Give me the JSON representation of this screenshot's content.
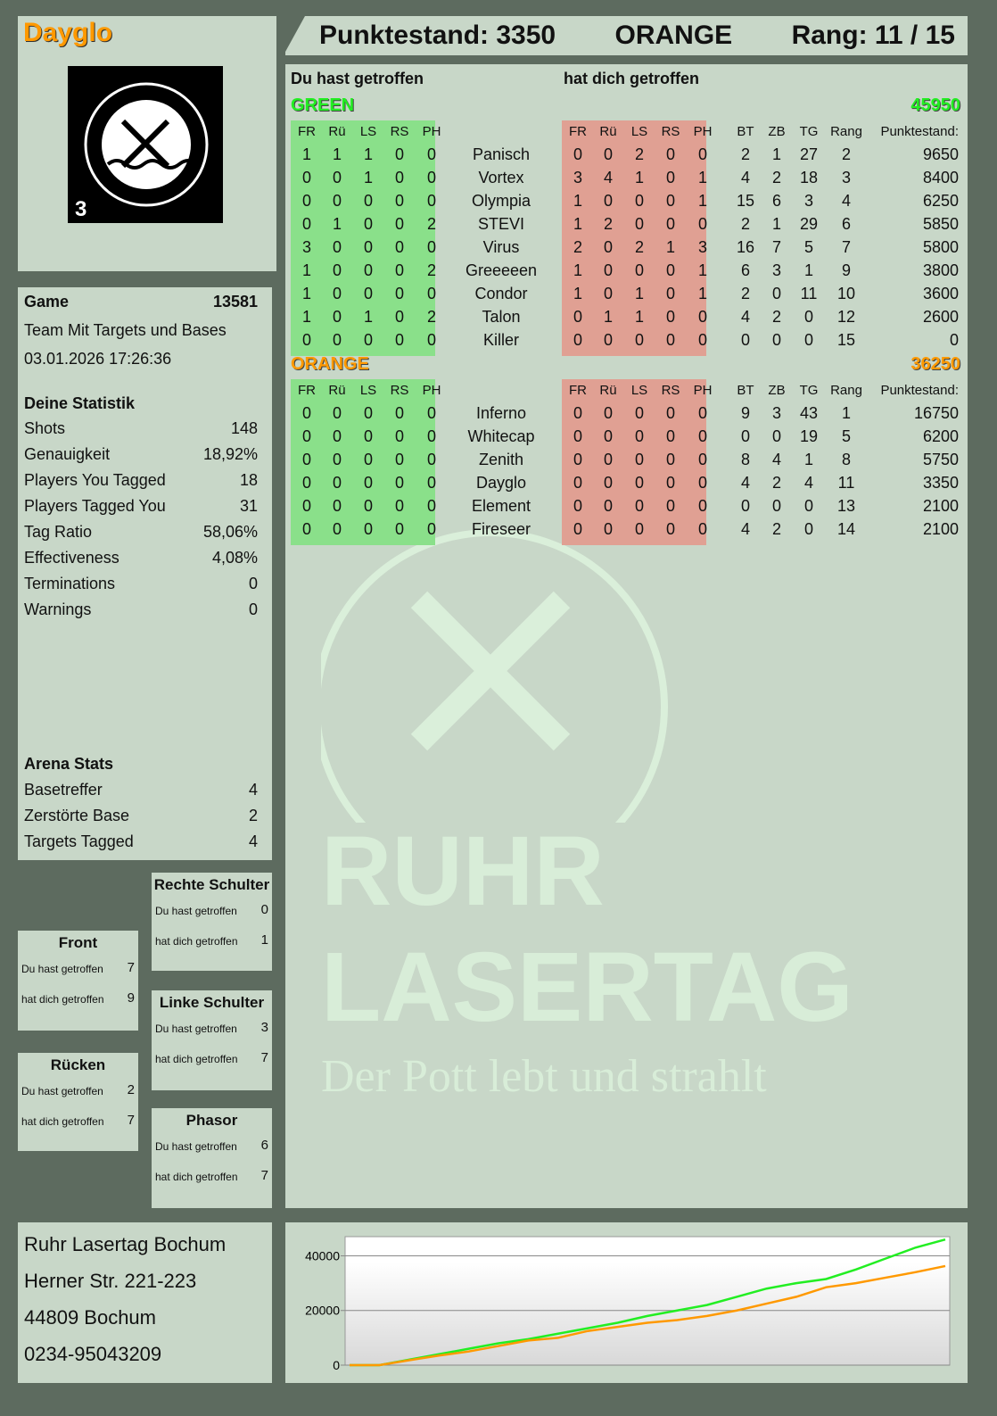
{
  "player": {
    "name": "Dayglo",
    "logo_text": "RUHR LASERTAG",
    "logo_badge": "3"
  },
  "header": {
    "score": "Punktestand: 3350",
    "team": "ORANGE",
    "rank": "Rang: 11 / 15"
  },
  "main": {
    "you_hit": "Du hast getroffen",
    "hit_you": "hat dich getroffen",
    "cols_hit": [
      "FR",
      "Rü",
      "LS",
      "RS",
      "PH"
    ],
    "cols_stats": [
      "BT",
      "ZB",
      "TG",
      "Rang",
      "Punktestand:"
    ],
    "teams": [
      {
        "name": "GREEN",
        "score": "45950",
        "color": "#22ee22",
        "players": [
          {
            "name": "Panisch",
            "you": [
              1,
              1,
              1,
              0,
              0
            ],
            "them": [
              0,
              0,
              2,
              0,
              0
            ],
            "stats": [
              2,
              1,
              27,
              2,
              9650
            ]
          },
          {
            "name": "Vortex",
            "you": [
              0,
              0,
              1,
              0,
              0
            ],
            "them": [
              3,
              4,
              1,
              0,
              1
            ],
            "stats": [
              4,
              2,
              18,
              3,
              8400
            ]
          },
          {
            "name": "Olympia",
            "you": [
              0,
              0,
              0,
              0,
              0
            ],
            "them": [
              1,
              0,
              0,
              0,
              1
            ],
            "stats": [
              15,
              6,
              3,
              4,
              6250
            ]
          },
          {
            "name": "STEVI",
            "you": [
              0,
              1,
              0,
              0,
              2
            ],
            "them": [
              1,
              2,
              0,
              0,
              0
            ],
            "stats": [
              2,
              1,
              29,
              6,
              5850
            ]
          },
          {
            "name": "Virus",
            "you": [
              3,
              0,
              0,
              0,
              0
            ],
            "them": [
              2,
              0,
              2,
              1,
              3
            ],
            "stats": [
              16,
              7,
              5,
              7,
              5800
            ]
          },
          {
            "name": "Greeeeen",
            "you": [
              1,
              0,
              0,
              0,
              2
            ],
            "them": [
              1,
              0,
              0,
              0,
              1
            ],
            "stats": [
              6,
              3,
              1,
              9,
              3800
            ]
          },
          {
            "name": "Condor",
            "you": [
              1,
              0,
              0,
              0,
              0
            ],
            "them": [
              1,
              0,
              1,
              0,
              1
            ],
            "stats": [
              2,
              0,
              11,
              10,
              3600
            ]
          },
          {
            "name": "Talon",
            "you": [
              1,
              0,
              1,
              0,
              2
            ],
            "them": [
              0,
              1,
              1,
              0,
              0
            ],
            "stats": [
              4,
              2,
              0,
              12,
              2600
            ]
          },
          {
            "name": "Killer",
            "you": [
              0,
              0,
              0,
              0,
              0
            ],
            "them": [
              0,
              0,
              0,
              0,
              0
            ],
            "stats": [
              0,
              0,
              0,
              15,
              0
            ]
          }
        ]
      },
      {
        "name": "ORANGE",
        "score": "36250",
        "color": "#ff9900",
        "players": [
          {
            "name": "Inferno",
            "you": [
              0,
              0,
              0,
              0,
              0
            ],
            "them": [
              0,
              0,
              0,
              0,
              0
            ],
            "stats": [
              9,
              3,
              43,
              1,
              16750
            ]
          },
          {
            "name": "Whitecap",
            "you": [
              0,
              0,
              0,
              0,
              0
            ],
            "them": [
              0,
              0,
              0,
              0,
              0
            ],
            "stats": [
              0,
              0,
              19,
              5,
              6200
            ]
          },
          {
            "name": "Zenith",
            "you": [
              0,
              0,
              0,
              0,
              0
            ],
            "them": [
              0,
              0,
              0,
              0,
              0
            ],
            "stats": [
              8,
              4,
              1,
              8,
              5750
            ]
          },
          {
            "name": "Dayglo",
            "you": [
              0,
              0,
              0,
              0,
              0
            ],
            "them": [
              0,
              0,
              0,
              0,
              0
            ],
            "stats": [
              4,
              2,
              4,
              11,
              3350
            ]
          },
          {
            "name": "Element",
            "you": [
              0,
              0,
              0,
              0,
              0
            ],
            "them": [
              0,
              0,
              0,
              0,
              0
            ],
            "stats": [
              0,
              0,
              0,
              13,
              2100
            ]
          },
          {
            "name": "Fireseer",
            "you": [
              0,
              0,
              0,
              0,
              0
            ],
            "them": [
              0,
              0,
              0,
              0,
              0
            ],
            "stats": [
              4,
              2,
              0,
              14,
              2100
            ]
          }
        ]
      }
    ],
    "watermark": {
      "line1": "RUHR",
      "line2": "LASERTAG",
      "slogan": "Der Pott lebt und strahlt"
    }
  },
  "game": {
    "label": "Game",
    "id": "13581",
    "mode": "Team Mit Targets und Bases",
    "date": "03.01.2026 17:26:36"
  },
  "stats": {
    "title": "Deine Statistik",
    "items": [
      [
        "Shots",
        "148"
      ],
      [
        "Genauigkeit",
        "18,92%"
      ],
      [
        "Players You Tagged",
        "18"
      ],
      [
        "Players Tagged You",
        "31"
      ],
      [
        "Tag Ratio",
        "58,06%"
      ],
      [
        "Effectiveness",
        "4,08%"
      ],
      [
        "Terminations",
        "0"
      ],
      [
        "Warnings",
        "0"
      ]
    ]
  },
  "arena": {
    "title": "Arena Stats",
    "items": [
      [
        "Basetreffer",
        "4"
      ],
      [
        "Zerstörte Base",
        "2"
      ],
      [
        "Targets Tagged",
        "4"
      ]
    ]
  },
  "zones": [
    {
      "title": "Rechte Schulter",
      "you": "0",
      "them": "1"
    },
    {
      "title": "Front",
      "you": "7",
      "them": "9"
    },
    {
      "title": "Linke Schulter",
      "you": "3",
      "them": "7"
    },
    {
      "title": "Rücken",
      "you": "2",
      "them": "7"
    },
    {
      "title": "Phasor",
      "you": "6",
      "them": "7"
    }
  ],
  "zone_labels": {
    "you": "Du hast getroffen",
    "them": "hat dich getroffen"
  },
  "address": [
    "Ruhr Lasertag Bochum",
    "Herner Str. 221-223",
    "44809 Bochum",
    "0234-95043209"
  ],
  "chart_data": {
    "type": "line",
    "yticks": [
      "0",
      "20000",
      "40000"
    ],
    "ylim": [
      0,
      47000
    ],
    "grid": true,
    "series": [
      {
        "color": "#22ee22",
        "values": [
          0,
          0,
          2000,
          4000,
          6000,
          8000,
          9500,
          11500,
          13500,
          15500,
          18000,
          20000,
          22000,
          25000,
          28000,
          30000,
          31500,
          35000,
          39000,
          43000,
          45950
        ]
      },
      {
        "color": "#ff9900",
        "values": [
          0,
          0,
          1800,
          3500,
          5000,
          7000,
          9000,
          10000,
          12500,
          14000,
          15500,
          16500,
          18000,
          20000,
          22500,
          25000,
          28500,
          30000,
          32000,
          34000,
          36250
        ]
      }
    ]
  }
}
